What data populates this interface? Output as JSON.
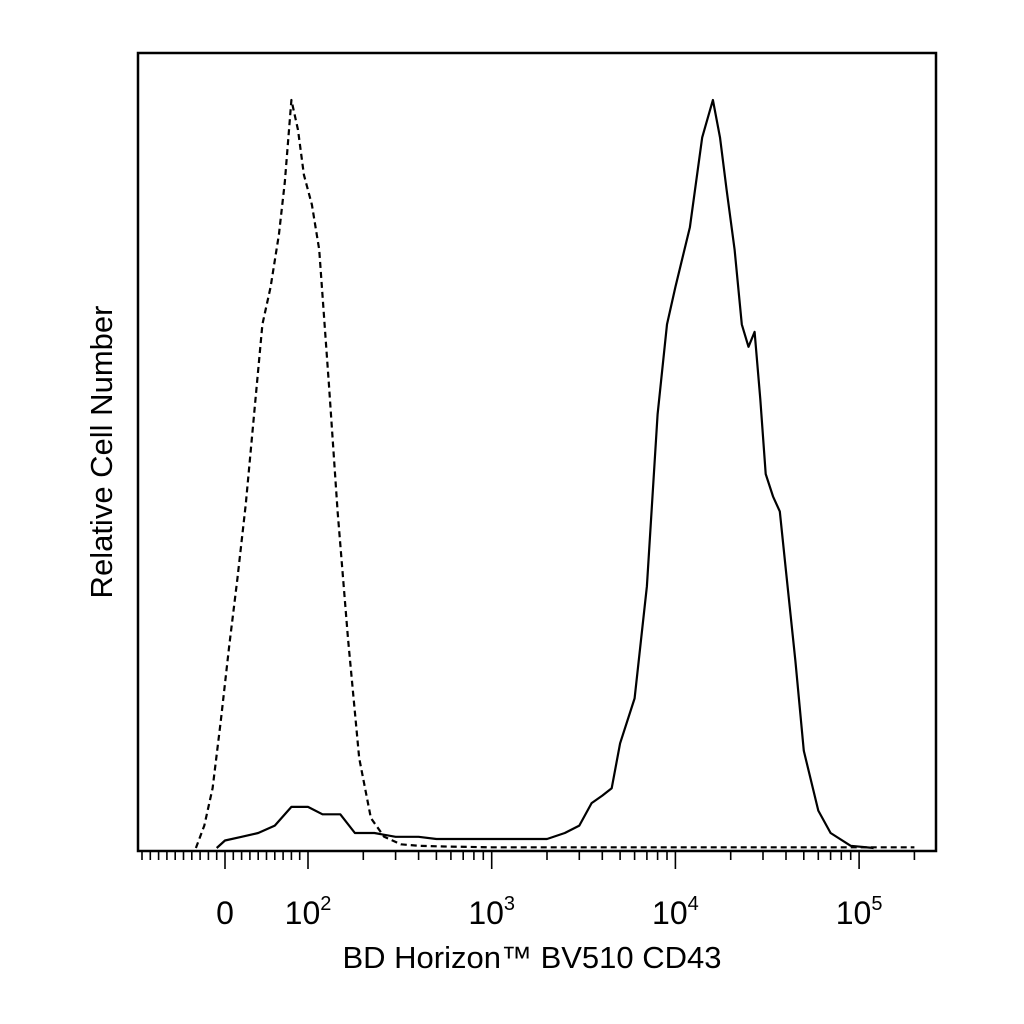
{
  "chart_data": {
    "type": "line",
    "title": "",
    "xlabel": "BD Horizon™ BV510 CD43",
    "ylabel": "Relative Cell Number",
    "x_scale": "biexponential",
    "xlim": [
      -40,
      250000
    ],
    "ylim": [
      0,
      100
    ],
    "grid": false,
    "legend": "none",
    "x_tick_labels": [
      {
        "value": 0,
        "base": "0",
        "exp": ""
      },
      {
        "value": 100,
        "base": "10",
        "exp": "2"
      },
      {
        "value": 1000,
        "base": "10",
        "exp": "3"
      },
      {
        "value": 10000,
        "base": "10",
        "exp": "4"
      },
      {
        "value": 100000,
        "base": "10",
        "exp": "5"
      }
    ],
    "series": [
      {
        "style": "dashed",
        "color": "#000000",
        "x": [
          -35,
          -25,
          -15,
          -5,
          5,
          15,
          25,
          35,
          45,
          55,
          65,
          72,
          80,
          88,
          95,
          105,
          115,
          130,
          145,
          165,
          190,
          220,
          260,
          320,
          400,
          550,
          1000,
          5000,
          20000,
          100000,
          200000
        ],
        "y": [
          0,
          3,
          8,
          17,
          27,
          36,
          46,
          58,
          70,
          75,
          82,
          89,
          100,
          96,
          90,
          86,
          80,
          62,
          45,
          28,
          12,
          4,
          1.5,
          0.5,
          0.3,
          0.2,
          0.1,
          0.1,
          0.1,
          0.1,
          0.1
        ]
      },
      {
        "style": "solid",
        "color": "#000000",
        "x": [
          -10,
          0,
          20,
          40,
          60,
          80,
          100,
          120,
          150,
          180,
          230,
          300,
          400,
          500,
          700,
          1000,
          1400,
          2000,
          2500,
          3000,
          3500,
          4000,
          4500,
          5000,
          6000,
          7000,
          8000,
          9000,
          10000,
          12000,
          14000,
          16000,
          17500,
          19000,
          21000,
          23000,
          25000,
          27000,
          29000,
          31000,
          34000,
          37000,
          40000,
          45000,
          50000,
          60000,
          70000,
          90000,
          120000
        ],
        "y": [
          0,
          1,
          1.5,
          2,
          3,
          5.5,
          5.5,
          4.5,
          4.5,
          2,
          2,
          1.5,
          1.5,
          1.2,
          1.2,
          1.2,
          1.2,
          1.2,
          2,
          3,
          6,
          7,
          8,
          14,
          20,
          35,
          58,
          70,
          75,
          83,
          95,
          100,
          95,
          88,
          80,
          70,
          67,
          69,
          60,
          50,
          47,
          45,
          37,
          25,
          13,
          5,
          2,
          0.3,
          0
        ]
      }
    ]
  }
}
